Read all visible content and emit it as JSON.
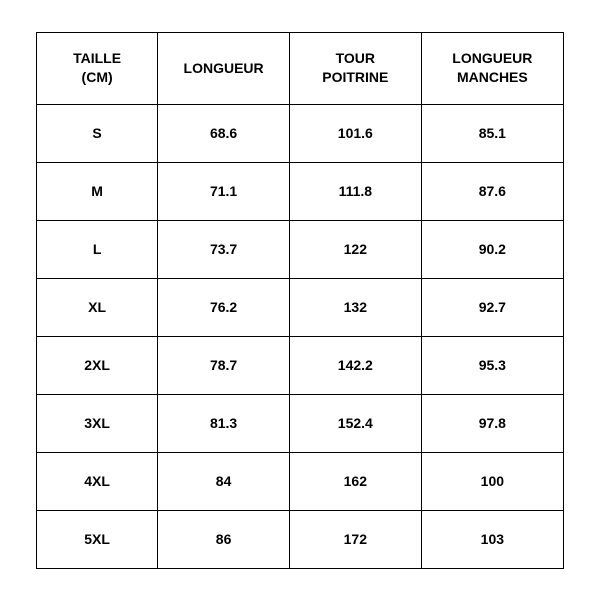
{
  "table": {
    "type": "table",
    "columns": [
      "TAILLE\n(CM)",
      "LONGUEUR",
      "TOUR\nPOITRINE",
      "LONGUEUR\nMANCHES"
    ],
    "rows": [
      [
        "S",
        "68.6",
        "101.6",
        "85.1"
      ],
      [
        "M",
        "71.1",
        "111.8",
        "87.6"
      ],
      [
        "L",
        "73.7",
        "122",
        "90.2"
      ],
      [
        "XL",
        "76.2",
        "132",
        "92.7"
      ],
      [
        "2XL",
        "78.7",
        "142.2",
        "95.3"
      ],
      [
        "3XL",
        "81.3",
        "152.4",
        "97.8"
      ],
      [
        "4XL",
        "84",
        "162",
        "100"
      ],
      [
        "5XL",
        "86",
        "172",
        "103"
      ]
    ],
    "border_color": "#000000",
    "background_color": "#ffffff",
    "text_color": "#000000",
    "header_fontsize": 14,
    "cell_fontsize": 14,
    "font_weight": 700,
    "header_row_height": 72,
    "data_row_height": 58,
    "column_widths_pct": [
      23,
      25,
      25,
      27
    ],
    "alignment": "center"
  }
}
